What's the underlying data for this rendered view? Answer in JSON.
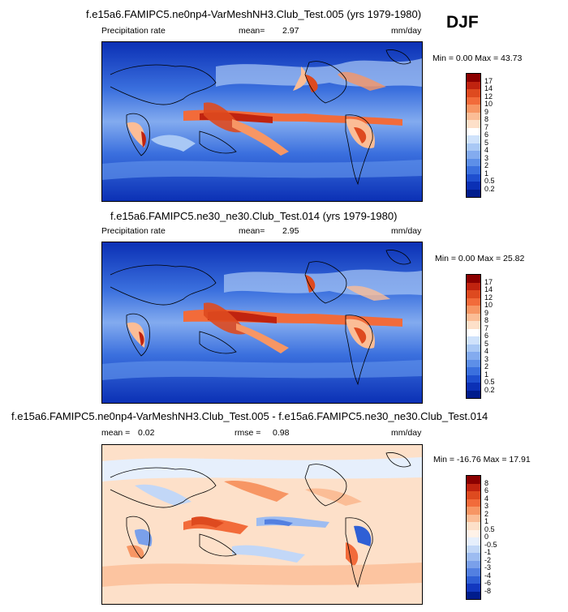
{
  "season": "DJF",
  "panels": [
    {
      "title": "f.e15a6.FAMIPC5.ne0np4-VarMeshNH3.Club_Test.005 (yrs 1979-1980)",
      "variable": "Precipitation rate",
      "stat1_label": "mean=",
      "stat1_value": "2.97",
      "units": "mm/day",
      "range": "Min =   0.00 Max =  43.73",
      "colorbar_labels": [
        "17",
        "14",
        "12",
        "10",
        "9",
        "8",
        "7",
        "6",
        "5",
        "4",
        "3",
        "2",
        "1",
        "0.5",
        "0.2"
      ]
    },
    {
      "title": "f.e15a6.FAMIPC5.ne30_ne30.Club_Test.014 (yrs 1979-1980)",
      "variable": "Precipitation rate",
      "stat1_label": "mean=",
      "stat1_value": "2.95",
      "units": "mm/day",
      "range": "Min =   0.00 Max =  25.82",
      "colorbar_labels": [
        "17",
        "14",
        "12",
        "10",
        "9",
        "8",
        "7",
        "6",
        "5",
        "4",
        "3",
        "2",
        "1",
        "0.5",
        "0.2"
      ]
    },
    {
      "title": "f.e15a6.FAMIPC5.ne0np4-VarMeshNH3.Club_Test.005 - f.e15a6.FAMIPC5.ne30_ne30.Club_Test.014",
      "stat1_label": "mean =",
      "stat1_value": "0.02",
      "stat2_label": "rmse =",
      "stat2_value": "0.98",
      "units": "mm/day",
      "range": "Min = -16.76 Max =  17.91",
      "colorbar_labels": [
        "8",
        "6",
        "4",
        "3",
        "2",
        "1",
        "0.5",
        "0",
        "-0.5",
        "-1",
        "-2",
        "-3",
        "-4",
        "-6",
        "-8"
      ]
    }
  ],
  "colors": {
    "precip_scale": [
      "#8b0000",
      "#c0230f",
      "#de4a1f",
      "#f26b3a",
      "#f79664",
      "#fbbd96",
      "#fde0c9",
      "#ffffff",
      "#cfe2fb",
      "#a9c8f5",
      "#83abef",
      "#5d8fe8",
      "#3b70de",
      "#1f4fcf",
      "#0b30b5",
      "#001c8c"
    ],
    "diff_scale": [
      "#8b0000",
      "#c0230f",
      "#de4a1f",
      "#f26b3a",
      "#f79664",
      "#fbbd96",
      "#fde0c9",
      "#fff2e8",
      "#e6effc",
      "#c2d7f7",
      "#9dbcf1",
      "#7aa0ea",
      "#5380e1",
      "#2f5fd5",
      "#1238bf",
      "#001c8c"
    ]
  }
}
